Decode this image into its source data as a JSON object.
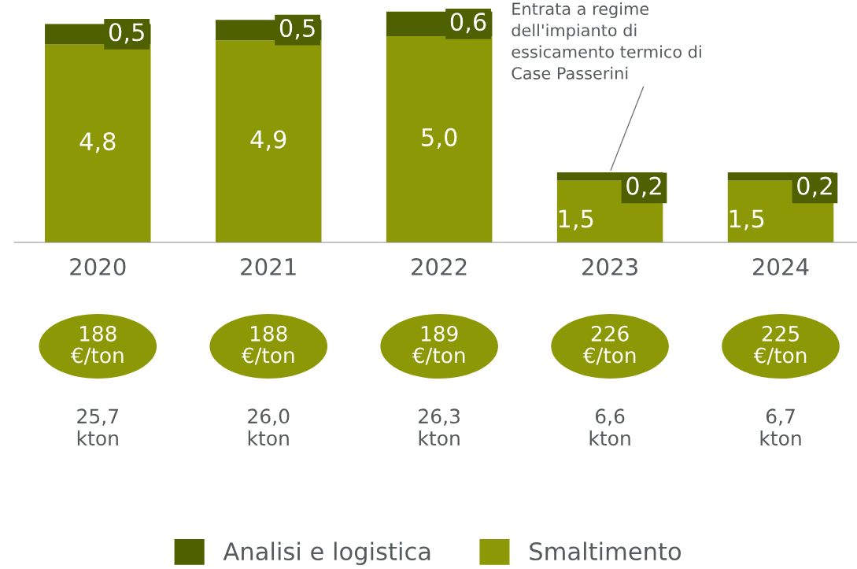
{
  "chart_data": {
    "type": "bar",
    "stacked": true,
    "categories": [
      "2020",
      "2021",
      "2022",
      "2023",
      "2024"
    ],
    "series": [
      {
        "name": "Smaltimento",
        "color": "#8d9806",
        "values": [
          4.8,
          4.9,
          5.0,
          1.5,
          1.5
        ],
        "value_labels": [
          "4,8",
          "4,9",
          "5,0",
          "1,5",
          "1,5"
        ]
      },
      {
        "name": "Analisi e logistica",
        "color": "#4e6000",
        "values": [
          0.5,
          0.5,
          0.6,
          0.2,
          0.2
        ],
        "value_labels": [
          "0,5",
          "0,5",
          "0,6",
          "0,2",
          "0,2"
        ]
      }
    ],
    "annotations": [
      {
        "text": "Entrata a regime\ndell'impianto di\nessicamento termico di\nCase Passerini",
        "x": "2023",
        "y": 1.7
      },
      "188\n€/ton",
      "188\n€/ton",
      "189\n€/ton",
      "226\n€/ton",
      "225\n€/ton",
      "25,7\nkton",
      "26,0\nkton",
      "26,3\nkton",
      "6,6\nkton",
      "6,7\nkton"
    ],
    "legend": "bottom",
    "grid": false
  }
}
